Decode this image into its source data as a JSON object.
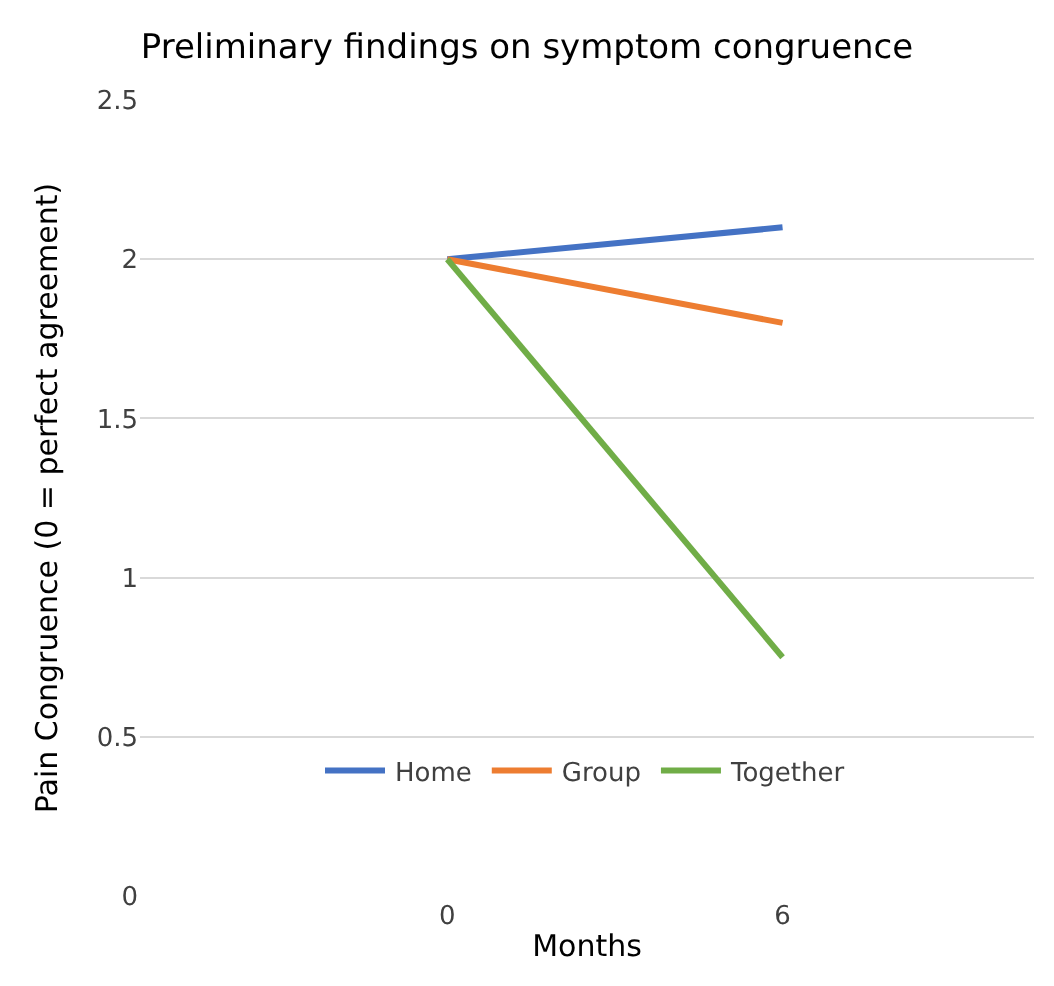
{
  "chart_data": {
    "type": "line",
    "title": "Preliminary findings on symptom congruence",
    "xlabel": "Months",
    "ylabel": "Pain Congruence (0 = perfect agreement)",
    "x": [
      0,
      6
    ],
    "xlim": [
      -5.5,
      10.5
    ],
    "xticks": [
      0,
      6
    ],
    "series": [
      {
        "name": "Home",
        "color": "#4472c4",
        "values": [
          2,
          2.1
        ]
      },
      {
        "name": "Group",
        "color": "#ed7d31",
        "values": [
          2,
          1.8
        ]
      },
      {
        "name": "Together",
        "color": "#70ad47",
        "values": [
          2,
          0.75
        ]
      }
    ],
    "ylim": [
      0,
      2.5
    ],
    "yticks": [
      0,
      0.5,
      1,
      1.5,
      2,
      2.5
    ],
    "grid": "y",
    "legend": "bottom",
    "marker": "none",
    "line_style": "solid"
  }
}
